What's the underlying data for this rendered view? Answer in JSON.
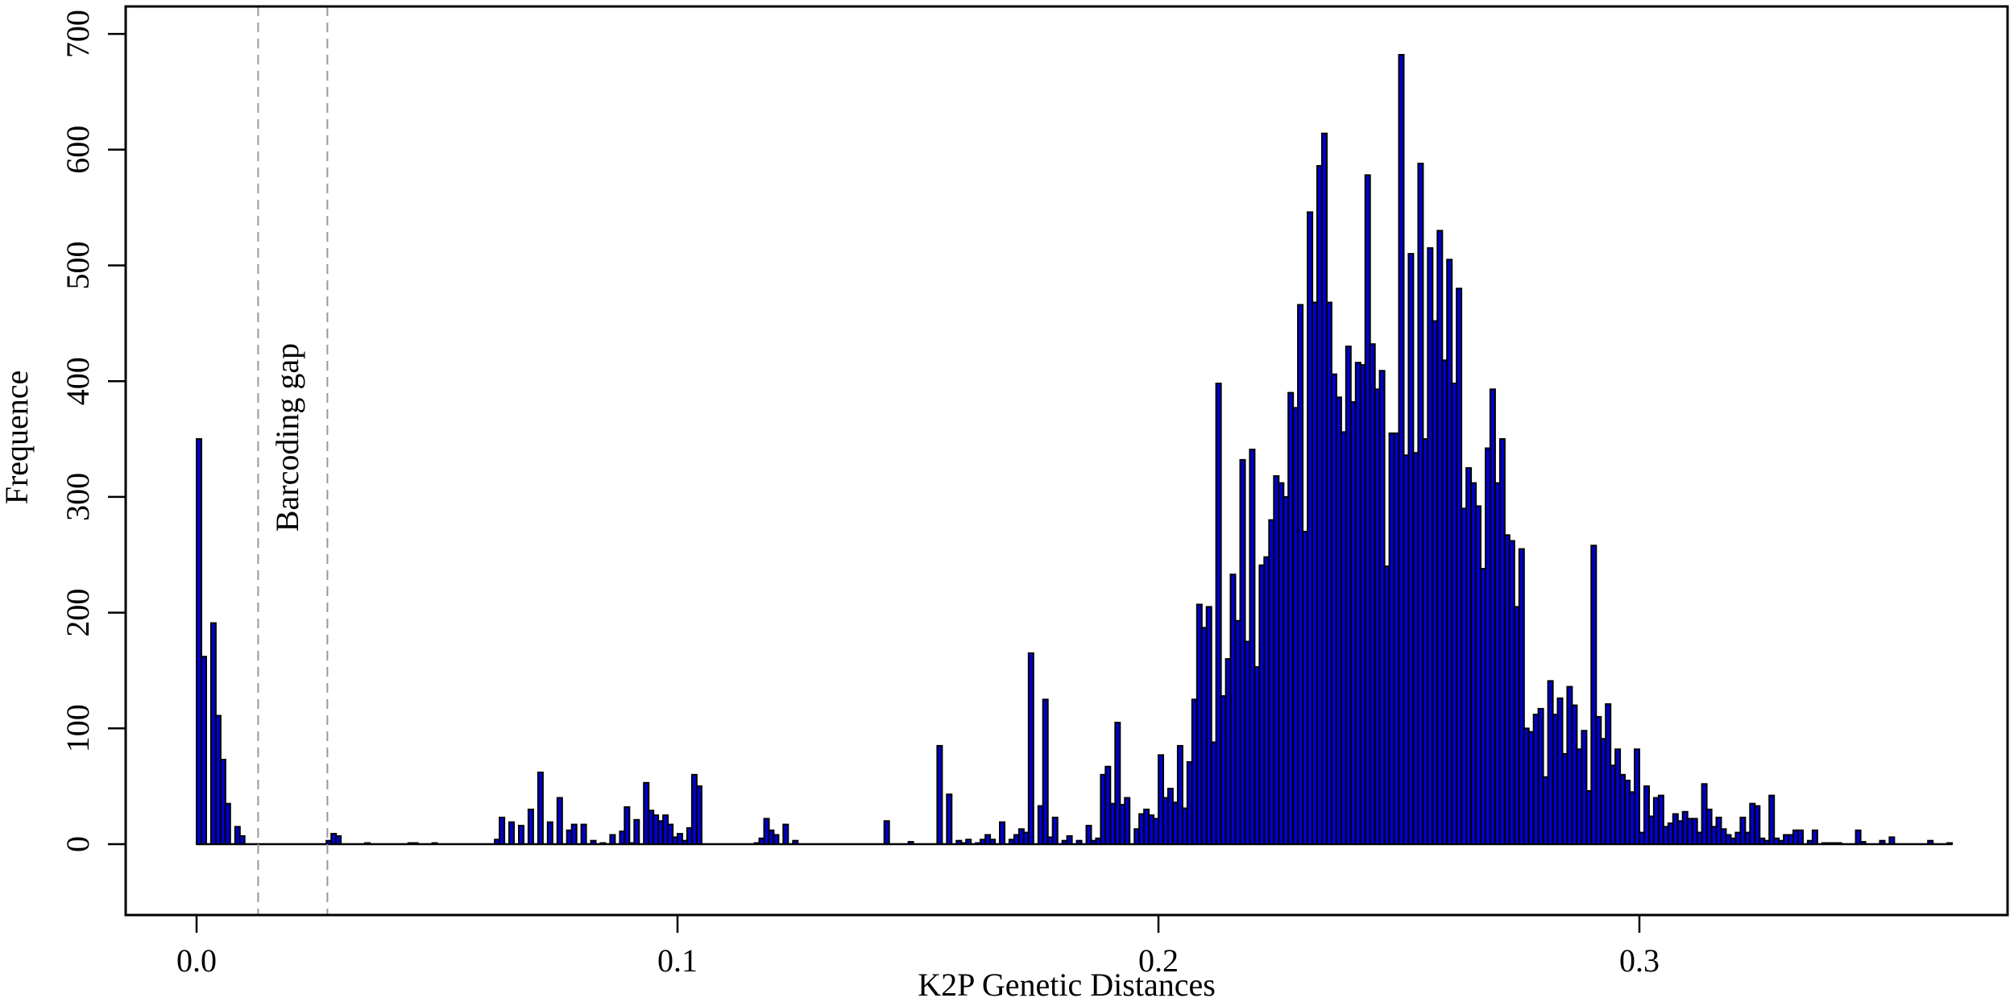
{
  "chart_data": {
    "type": "bar",
    "title": "",
    "xlabel": "K2P Genetic Distances",
    "ylabel": "Frequence",
    "xlim": [
      0,
      0.37
    ],
    "ylim": [
      0,
      700
    ],
    "bin_width": 0.001,
    "x_ticks": [
      0.0,
      0.1,
      0.2,
      0.3
    ],
    "x_tick_labels": [
      "0.0",
      "0.1",
      "0.2",
      "0.3"
    ],
    "y_ticks": [
      0,
      100,
      200,
      300,
      400,
      500,
      600,
      700
    ],
    "y_tick_labels": [
      "0",
      "100",
      "200",
      "300",
      "400",
      "500",
      "600",
      "700"
    ],
    "grid": false,
    "bar_fill": "#0000CD",
    "bar_edge": "#000000",
    "annotations": [
      {
        "type": "vline",
        "x": 0.0128,
        "style": "dashed",
        "color": "#999999"
      },
      {
        "type": "vline",
        "x": 0.0272,
        "style": "dashed",
        "color": "#999999"
      },
      {
        "type": "text",
        "text": "Barcoding gap",
        "x": 0.0195,
        "y": 400,
        "rotation": -90
      }
    ],
    "bins": [
      [
        0.0,
        350
      ],
      [
        0.001,
        162
      ],
      [
        0.003,
        191
      ],
      [
        0.004,
        111
      ],
      [
        0.005,
        73
      ],
      [
        0.006,
        35
      ],
      [
        0.008,
        15
      ],
      [
        0.009,
        7
      ],
      [
        0.027,
        3
      ],
      [
        0.028,
        9
      ],
      [
        0.029,
        7
      ],
      [
        0.035,
        1
      ],
      [
        0.044,
        1
      ],
      [
        0.045,
        1
      ],
      [
        0.049,
        1
      ],
      [
        0.062,
        4
      ],
      [
        0.063,
        23
      ],
      [
        0.065,
        19
      ],
      [
        0.067,
        16
      ],
      [
        0.069,
        30
      ],
      [
        0.071,
        62
      ],
      [
        0.073,
        19
      ],
      [
        0.075,
        40
      ],
      [
        0.077,
        12
      ],
      [
        0.078,
        17
      ],
      [
        0.08,
        17
      ],
      [
        0.082,
        3
      ],
      [
        0.084,
        1
      ],
      [
        0.086,
        8
      ],
      [
        0.088,
        11
      ],
      [
        0.089,
        32
      ],
      [
        0.09,
        1
      ],
      [
        0.091,
        21
      ],
      [
        0.093,
        53
      ],
      [
        0.094,
        29
      ],
      [
        0.095,
        25
      ],
      [
        0.096,
        20
      ],
      [
        0.097,
        25
      ],
      [
        0.098,
        17
      ],
      [
        0.099,
        6
      ],
      [
        0.1,
        9
      ],
      [
        0.101,
        3
      ],
      [
        0.102,
        14
      ],
      [
        0.103,
        60
      ],
      [
        0.104,
        50
      ],
      [
        0.116,
        1
      ],
      [
        0.117,
        5
      ],
      [
        0.118,
        22
      ],
      [
        0.119,
        12
      ],
      [
        0.12,
        8
      ],
      [
        0.122,
        17
      ],
      [
        0.124,
        3
      ],
      [
        0.143,
        20
      ],
      [
        0.148,
        2
      ],
      [
        0.154,
        85
      ],
      [
        0.156,
        43
      ],
      [
        0.158,
        3
      ],
      [
        0.159,
        1
      ],
      [
        0.16,
        4
      ],
      [
        0.162,
        1
      ],
      [
        0.163,
        4
      ],
      [
        0.164,
        8
      ],
      [
        0.165,
        4
      ],
      [
        0.167,
        19
      ],
      [
        0.169,
        4
      ],
      [
        0.17,
        8
      ],
      [
        0.171,
        13
      ],
      [
        0.172,
        10
      ],
      [
        0.173,
        165
      ],
      [
        0.175,
        33
      ],
      [
        0.176,
        125
      ],
      [
        0.177,
        6
      ],
      [
        0.178,
        23
      ],
      [
        0.18,
        3
      ],
      [
        0.181,
        7
      ],
      [
        0.183,
        3
      ],
      [
        0.185,
        16
      ],
      [
        0.186,
        3
      ],
      [
        0.187,
        5
      ],
      [
        0.188,
        60
      ],
      [
        0.189,
        67
      ],
      [
        0.19,
        35
      ],
      [
        0.191,
        105
      ],
      [
        0.192,
        34
      ],
      [
        0.193,
        40
      ],
      [
        0.195,
        13
      ],
      [
        0.196,
        26
      ],
      [
        0.197,
        30
      ],
      [
        0.198,
        25
      ],
      [
        0.199,
        22
      ],
      [
        0.2,
        77
      ],
      [
        0.201,
        40
      ],
      [
        0.202,
        48
      ],
      [
        0.203,
        36
      ],
      [
        0.204,
        85
      ],
      [
        0.205,
        31
      ],
      [
        0.206,
        71
      ],
      [
        0.207,
        125
      ],
      [
        0.208,
        207
      ],
      [
        0.209,
        187
      ],
      [
        0.21,
        205
      ],
      [
        0.211,
        88
      ],
      [
        0.212,
        398
      ],
      [
        0.213,
        128
      ],
      [
        0.214,
        160
      ],
      [
        0.215,
        233
      ],
      [
        0.216,
        193
      ],
      [
        0.217,
        332
      ],
      [
        0.218,
        175
      ],
      [
        0.219,
        341
      ],
      [
        0.22,
        153
      ],
      [
        0.221,
        241
      ],
      [
        0.222,
        248
      ],
      [
        0.223,
        280
      ],
      [
        0.224,
        318
      ],
      [
        0.225,
        312
      ],
      [
        0.226,
        300
      ],
      [
        0.227,
        390
      ],
      [
        0.228,
        377
      ],
      [
        0.229,
        466
      ],
      [
        0.23,
        270
      ],
      [
        0.231,
        546
      ],
      [
        0.232,
        468
      ],
      [
        0.233,
        586
      ],
      [
        0.234,
        614
      ],
      [
        0.235,
        468
      ],
      [
        0.236,
        406
      ],
      [
        0.237,
        386
      ],
      [
        0.238,
        356
      ],
      [
        0.239,
        430
      ],
      [
        0.24,
        382
      ],
      [
        0.241,
        416
      ],
      [
        0.242,
        414
      ],
      [
        0.243,
        578
      ],
      [
        0.244,
        432
      ],
      [
        0.245,
        393
      ],
      [
        0.246,
        409
      ],
      [
        0.247,
        240
      ],
      [
        0.248,
        355
      ],
      [
        0.249,
        355
      ],
      [
        0.25,
        682
      ],
      [
        0.251,
        336
      ],
      [
        0.252,
        510
      ],
      [
        0.253,
        338
      ],
      [
        0.254,
        588
      ],
      [
        0.255,
        350
      ],
      [
        0.256,
        515
      ],
      [
        0.257,
        452
      ],
      [
        0.258,
        530
      ],
      [
        0.259,
        418
      ],
      [
        0.26,
        505
      ],
      [
        0.261,
        398
      ],
      [
        0.262,
        480
      ],
      [
        0.263,
        290
      ],
      [
        0.264,
        325
      ],
      [
        0.265,
        312
      ],
      [
        0.266,
        292
      ],
      [
        0.267,
        238
      ],
      [
        0.268,
        342
      ],
      [
        0.269,
        393
      ],
      [
        0.27,
        312
      ],
      [
        0.271,
        350
      ],
      [
        0.272,
        267
      ],
      [
        0.273,
        262
      ],
      [
        0.274,
        205
      ],
      [
        0.275,
        255
      ],
      [
        0.276,
        100
      ],
      [
        0.277,
        97
      ],
      [
        0.278,
        112
      ],
      [
        0.279,
        117
      ],
      [
        0.28,
        58
      ],
      [
        0.281,
        141
      ],
      [
        0.282,
        112
      ],
      [
        0.283,
        126
      ],
      [
        0.284,
        78
      ],
      [
        0.285,
        136
      ],
      [
        0.286,
        120
      ],
      [
        0.287,
        82
      ],
      [
        0.288,
        98
      ],
      [
        0.289,
        46
      ],
      [
        0.29,
        258
      ],
      [
        0.291,
        110
      ],
      [
        0.292,
        91
      ],
      [
        0.293,
        121
      ],
      [
        0.294,
        68
      ],
      [
        0.295,
        82
      ],
      [
        0.296,
        60
      ],
      [
        0.297,
        55
      ],
      [
        0.298,
        45
      ],
      [
        0.299,
        82
      ],
      [
        0.3,
        10
      ],
      [
        0.301,
        50
      ],
      [
        0.302,
        24
      ],
      [
        0.303,
        40
      ],
      [
        0.304,
        42
      ],
      [
        0.305,
        15
      ],
      [
        0.306,
        18
      ],
      [
        0.307,
        26
      ],
      [
        0.308,
        20
      ],
      [
        0.309,
        28
      ],
      [
        0.31,
        22
      ],
      [
        0.311,
        22
      ],
      [
        0.312,
        10
      ],
      [
        0.313,
        52
      ],
      [
        0.314,
        30
      ],
      [
        0.315,
        15
      ],
      [
        0.316,
        23
      ],
      [
        0.317,
        13
      ],
      [
        0.318,
        8
      ],
      [
        0.319,
        5
      ],
      [
        0.32,
        10
      ],
      [
        0.321,
        23
      ],
      [
        0.322,
        10
      ],
      [
        0.323,
        35
      ],
      [
        0.324,
        33
      ],
      [
        0.325,
        5
      ],
      [
        0.326,
        3
      ],
      [
        0.327,
        42
      ],
      [
        0.328,
        5
      ],
      [
        0.329,
        3
      ],
      [
        0.33,
        8
      ],
      [
        0.331,
        8
      ],
      [
        0.332,
        12
      ],
      [
        0.333,
        12
      ],
      [
        0.335,
        3
      ],
      [
        0.336,
        12
      ],
      [
        0.338,
        1
      ],
      [
        0.339,
        1
      ],
      [
        0.34,
        1
      ],
      [
        0.341,
        1
      ],
      [
        0.345,
        12
      ],
      [
        0.346,
        2
      ],
      [
        0.35,
        3
      ],
      [
        0.352,
        6
      ],
      [
        0.36,
        3
      ],
      [
        0.364,
        1
      ]
    ]
  },
  "labels": {
    "xlabel": "K2P Genetic Distances",
    "ylabel": "Frequence",
    "annotation": "Barcoding gap"
  }
}
